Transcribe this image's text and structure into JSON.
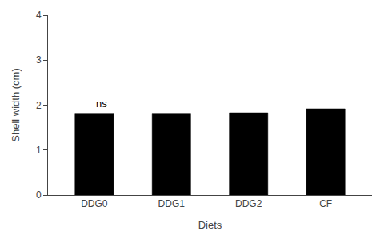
{
  "chart_data": {
    "type": "bar",
    "categories": [
      "DDG0",
      "DDG1",
      "DDG2",
      "CF"
    ],
    "values": [
      1.82,
      1.82,
      1.83,
      1.92
    ],
    "color": "#000000",
    "xlabel": "Diets",
    "ylabel": "Shell width (cm)",
    "ylim": [
      0,
      4
    ],
    "yticks": [
      0,
      1,
      2,
      3,
      4
    ],
    "grid": false,
    "annotations": [
      {
        "text": "ns",
        "x": "DDG0",
        "y": 1.87
      }
    ]
  }
}
